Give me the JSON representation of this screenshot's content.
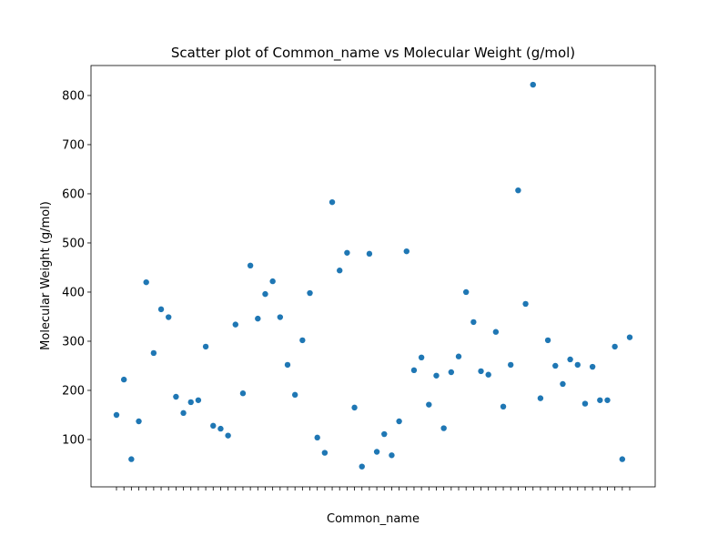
{
  "chart_data": {
    "type": "scatter",
    "title": "Scatter plot of Common_name vs Molecular Weight (g/mol)",
    "x_label": "Common_name",
    "y_label": "Molecular Weight (g/mol)",
    "categories": [
      null,
      null,
      null,
      null,
      null,
      null,
      null,
      null,
      null,
      null,
      null,
      null,
      null,
      null,
      null,
      null,
      null,
      null,
      null,
      null,
      null,
      null,
      null,
      null,
      null,
      null,
      null,
      null,
      null,
      null,
      null,
      null,
      null,
      null,
      null,
      null,
      null,
      null,
      null,
      null,
      null,
      null,
      null,
      null,
      null,
      null,
      null,
      null,
      null,
      null,
      null,
      null,
      null,
      null,
      null,
      null,
      null,
      null,
      null,
      null,
      null,
      null,
      null,
      null,
      null,
      null,
      null,
      null,
      null,
      null
    ],
    "values": [
      150,
      222,
      60,
      137,
      420,
      276,
      365,
      349,
      187,
      154,
      176,
      180,
      289,
      128,
      122,
      108,
      334,
      194,
      454,
      346,
      396,
      422,
      349,
      252,
      191,
      302,
      398,
      104,
      73,
      583,
      444,
      480,
      165,
      45,
      478,
      75,
      111,
      68,
      137,
      483,
      241,
      267,
      171,
      230,
      123,
      237,
      269,
      400,
      339,
      239,
      232,
      319,
      167,
      252,
      607,
      376,
      822,
      184,
      302,
      250,
      213,
      263,
      252,
      173,
      248,
      180,
      180,
      289,
      60,
      308
    ],
    "color": "#1f77b4",
    "ylim": [
      3.7,
      861
    ],
    "yticks": [
      100,
      200,
      300,
      400,
      500,
      600,
      700,
      800
    ]
  }
}
